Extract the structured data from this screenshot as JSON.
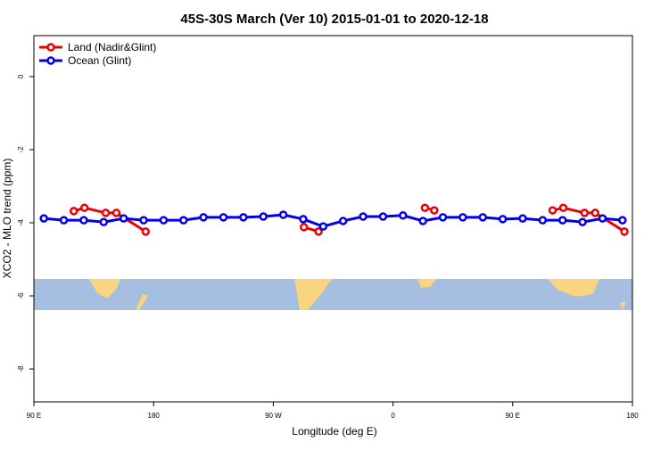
{
  "chart_data": {
    "type": "line",
    "title": "45S-30S March (Ver 10)   2015-01-01 to 2020-12-18",
    "x_label": "Longitude (deg E)",
    "y_label": "XCO2 - MLO trend (ppm)",
    "xlim": [
      90,
      540
    ],
    "xticks": [
      {
        "value": 90,
        "label": "90 E"
      },
      180,
      {
        "value": 270,
        "label": "90 W"
      },
      {
        "value": 360,
        "label": "0"
      },
      {
        "value": 450,
        "label": "90 E"
      },
      {
        "value": 540,
        "label": "180"
      }
    ],
    "ylim": [
      -8.9,
      1.12
    ],
    "yticks": [
      0,
      -2,
      -4,
      -6,
      -8
    ],
    "legend": "top-left",
    "series": [
      {
        "name": "Land (Nadir&Glint)",
        "color": "#ee0000",
        "x": [
          120,
          128,
          144,
          152,
          174,
          null,
          293,
          304,
          null,
          384,
          391,
          null,
          480,
          488,
          504,
          512,
          534
        ],
        "values": [
          -3.68,
          -3.59,
          -3.73,
          -3.73,
          -4.24,
          null,
          -4.12,
          -4.24,
          null,
          -3.59,
          -3.66,
          null,
          -3.66,
          -3.59,
          -3.73,
          -3.73,
          -4.24
        ]
      },
      {
        "name": "Ocean (Glint)",
        "color": "#0000ee",
        "x": [
          97.5,
          112.5,
          127.5,
          142.5,
          157.5,
          172.5,
          187.5,
          202.5,
          217.5,
          232.5,
          247.5,
          262.5,
          277.5,
          292.5,
          307.5,
          322.5,
          337.5,
          352.5,
          367.5,
          382.5,
          397.5,
          412.5,
          427.5,
          442.5,
          457.5,
          472.5,
          487.5,
          502.5,
          517.5,
          532.5
        ],
        "values": [
          -3.88,
          -3.93,
          -3.93,
          -3.98,
          -3.88,
          -3.93,
          -3.93,
          -3.93,
          -3.85,
          -3.85,
          -3.85,
          -3.83,
          -3.78,
          -3.9,
          -4.1,
          -3.95,
          -3.83,
          -3.83,
          -3.8,
          -3.95,
          -3.85,
          -3.85,
          -3.85,
          -3.9,
          -3.88,
          -3.93,
          -3.93,
          -3.98,
          -3.88,
          -3.93
        ]
      }
    ]
  }
}
